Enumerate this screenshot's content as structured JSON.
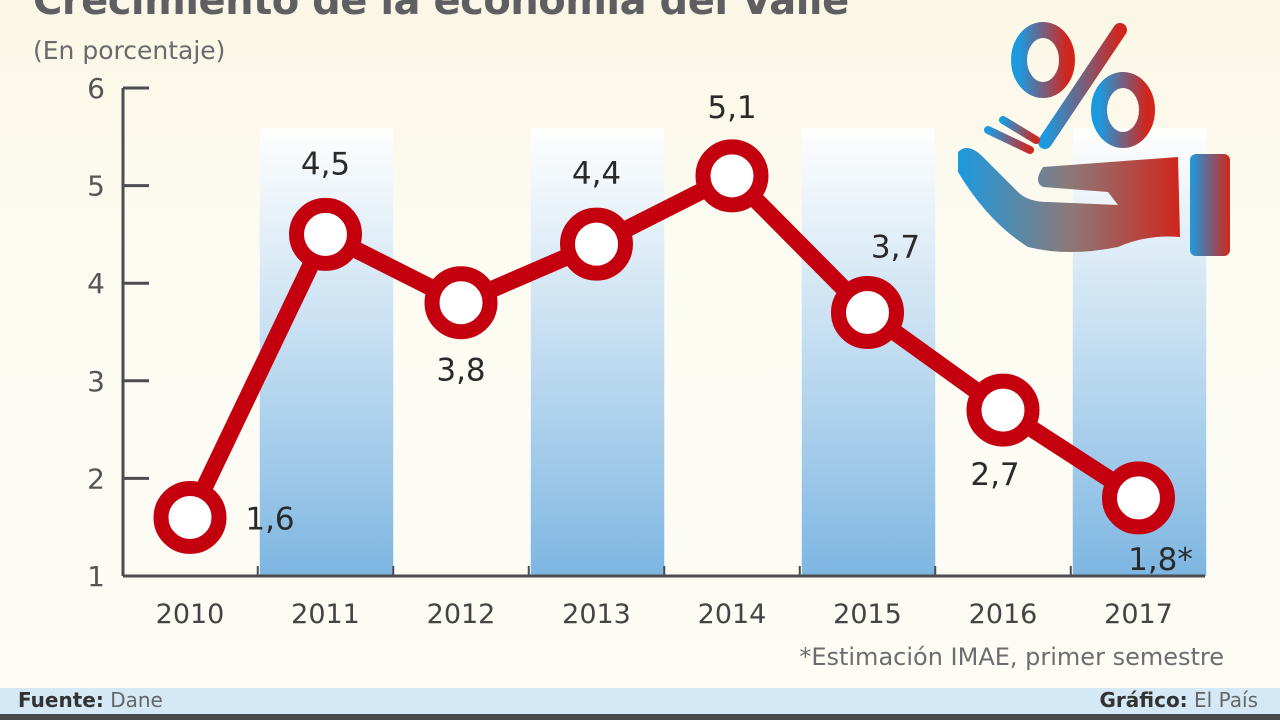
{
  "chart_data": {
    "type": "line",
    "title": "Crecimiento de la economía del Valle",
    "subtitle": "(En porcentaje)",
    "categories": [
      "2010",
      "2011",
      "2012",
      "2013",
      "2014",
      "2015",
      "2016",
      "2017"
    ],
    "values": [
      1.6,
      4.5,
      3.8,
      4.4,
      5.1,
      3.7,
      2.7,
      1.8
    ],
    "data_labels": [
      "1,6",
      "4,5",
      "3,8",
      "4,4",
      "5,1",
      "3,7",
      "2,7",
      "1,8*"
    ],
    "yticks": [
      "1",
      "2",
      "3",
      "4",
      "5",
      "6"
    ],
    "ylim": [
      1,
      6
    ],
    "grid": false,
    "footnote": "*Estimación IMAE, primer semestre",
    "colors": {
      "line": "#c4000f",
      "stripe": "#7db6e2",
      "axis": "#4d4d50"
    }
  },
  "footer": {
    "source_label": "Fuente:",
    "source_value": "Dane",
    "credit_label": "Gráfico:",
    "credit_value": "El País"
  },
  "icon": "hand-percent-icon"
}
